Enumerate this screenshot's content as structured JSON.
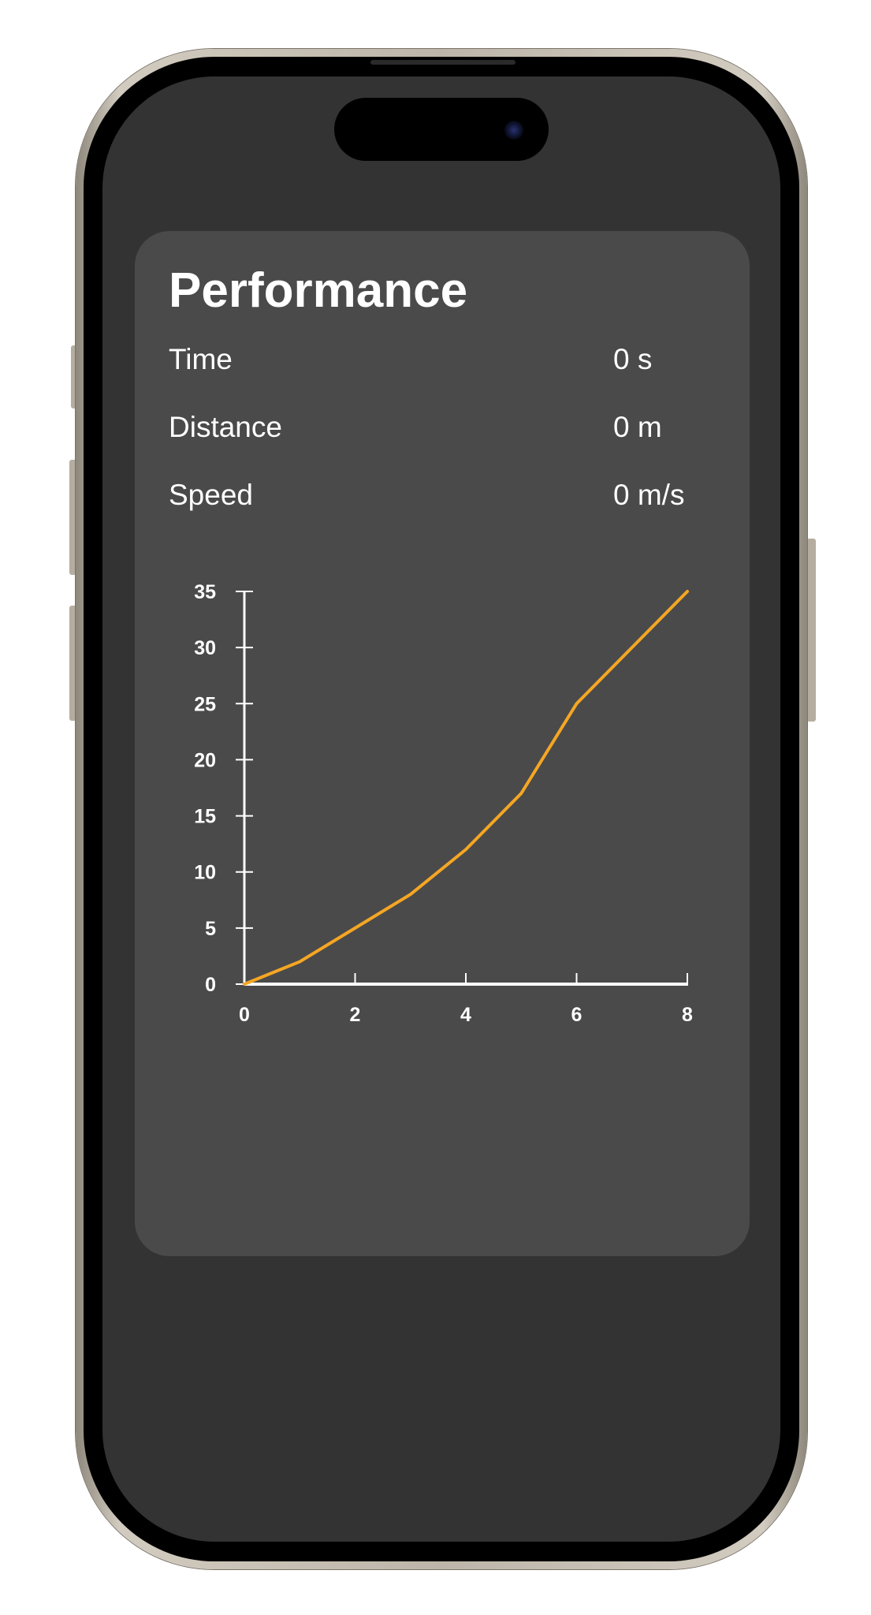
{
  "performance": {
    "title": "Performance",
    "stats": [
      {
        "label": "Time",
        "value": "0 s"
      },
      {
        "label": "Distance",
        "value": "0 m"
      },
      {
        "label": "Speed",
        "value": "0 m/s"
      }
    ]
  },
  "colors": {
    "screen_background": "#333333",
    "card_background": "#4a4a4a",
    "text": "#ffffff",
    "axis": "#ffffff",
    "line": "#f5a623"
  },
  "chart_data": {
    "type": "line",
    "title": "",
    "xlabel": "",
    "ylabel": "",
    "xlim": [
      0,
      8
    ],
    "ylim": [
      0,
      35
    ],
    "x_ticks": [
      0,
      2,
      4,
      6,
      8
    ],
    "y_ticks": [
      0,
      5,
      10,
      15,
      20,
      25,
      30,
      35
    ],
    "grid": false,
    "legend": "none",
    "series": [
      {
        "color": "#f5a623",
        "x": [
          0,
          0.5,
          1,
          2,
          3,
          4,
          5,
          6,
          7,
          8
        ],
        "y": [
          0,
          1,
          2,
          5,
          8,
          12,
          17,
          25,
          30,
          35
        ]
      }
    ]
  }
}
